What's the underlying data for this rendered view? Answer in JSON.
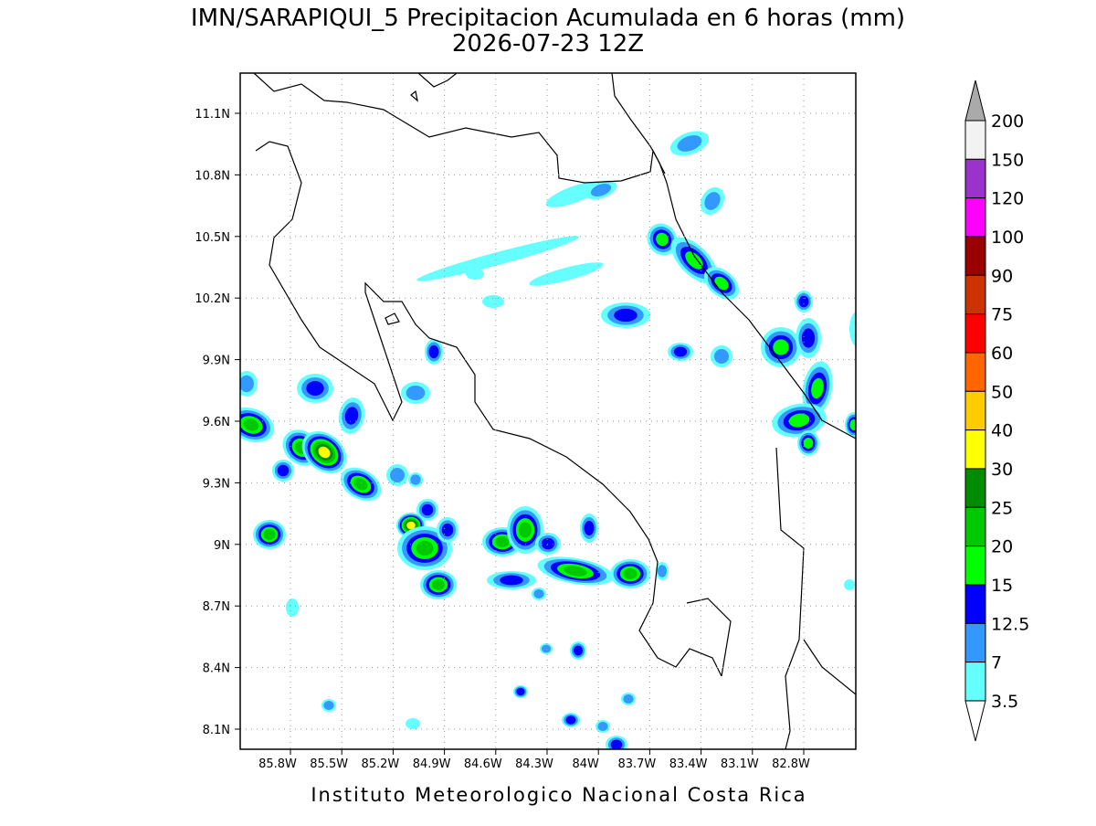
{
  "title": "IMN/SARAPIQUI_5 Precipitacion Acumulada en 6 horas (mm)",
  "subtitle": "2026-07-23 12Z",
  "footer": "Instituto Meteorologico Nacional Costa Rica",
  "lat_ticks": [
    "11.1N",
    "10.8N",
    "10.5N",
    "10.2N",
    "9.9N",
    "9.6N",
    "9.3N",
    "9N",
    "8.7N",
    "8.4N",
    "8.1N"
  ],
  "lon_ticks": [
    "85.8W",
    "85.5W",
    "85.2W",
    "84.9W",
    "84.6W",
    "84.3W",
    "84W",
    "83.7W",
    "83.4W",
    "83.1W",
    "82.8W"
  ],
  "colorbar": {
    "levels": [
      200,
      150,
      120,
      100,
      90,
      75,
      60,
      50,
      40,
      30,
      25,
      20,
      15,
      12.5,
      7,
      3.5
    ],
    "colors": [
      "#f2f2f2",
      "#9933cc",
      "#ff00ff",
      "#990000",
      "#cc3300",
      "#ff0000",
      "#ff6600",
      "#ffcc00",
      "#ffff00",
      "#008c00",
      "#00c800",
      "#00ff00",
      "#0000ff",
      "#3399ff",
      "#66ffff"
    ],
    "over_color": "#aaaaaa",
    "under_color": "#ffffff"
  }
}
